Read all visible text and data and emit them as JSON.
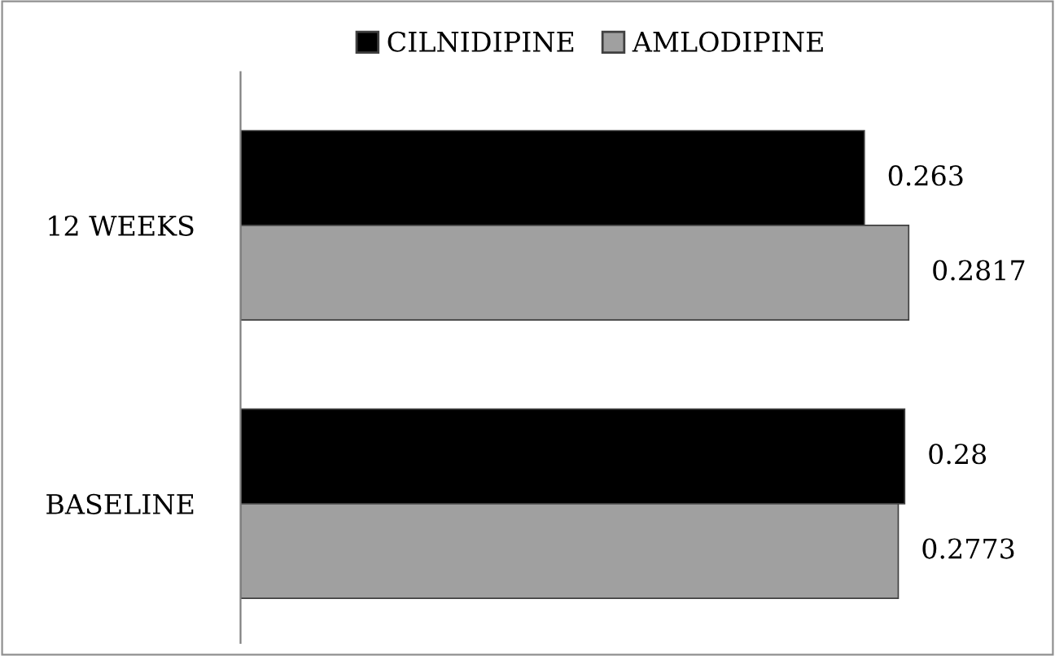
{
  "chart_data": {
    "type": "bar",
    "orientation": "horizontal",
    "categories": [
      "12 WEEKS",
      "BASELINE"
    ],
    "series": [
      {
        "name": "CILNIDIPINE",
        "color": "#000000",
        "values": [
          0.263,
          0.28
        ]
      },
      {
        "name": "AMLODIPINE",
        "color": "#a0a0a0",
        "values": [
          0.2817,
          0.2773
        ]
      }
    ],
    "data_labels": true,
    "legend": "top",
    "tick_labels": "y",
    "grid": false
  }
}
